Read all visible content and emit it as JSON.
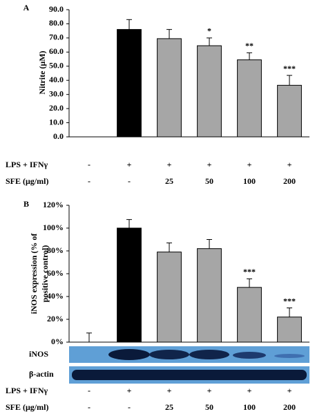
{
  "chart_data": [
    {
      "type": "bar",
      "panel": "A",
      "y_label": "Nitrite (μM)",
      "values": [
        0,
        76,
        69.5,
        64.5,
        54.5,
        36.5
      ],
      "errors": [
        null,
        7,
        6.5,
        5.5,
        5,
        7
      ],
      "annotations": [
        null,
        null,
        null,
        "*",
        "**",
        "***"
      ],
      "colors": [
        "#000000",
        "#000000",
        "#a6a6a6",
        "#a6a6a6",
        "#a6a6a6",
        "#a6a6a6"
      ],
      "ylim": [
        0,
        90
      ],
      "yticks": [
        {
          "value": 0,
          "label": "0.0"
        },
        {
          "value": 10,
          "label": "10.0"
        },
        {
          "value": 20,
          "label": "20.0"
        },
        {
          "value": 30,
          "label": "30.0"
        },
        {
          "value": 40,
          "label": "40.0"
        },
        {
          "value": 50,
          "label": "50.0"
        },
        {
          "value": 60,
          "label": "60.0"
        },
        {
          "value": 70,
          "label": "70.0"
        },
        {
          "value": 80,
          "label": "80.0"
        },
        {
          "value": 90,
          "label": "90.0"
        }
      ],
      "treatments": [
        {
          "label": "LPS + IFNγ",
          "values": [
            "-",
            "+",
            "+",
            "+",
            "+",
            "+"
          ]
        },
        {
          "label": "SFE (μg/ml)",
          "values": [
            "-",
            "-",
            "25",
            "50",
            "100",
            "200"
          ]
        }
      ]
    },
    {
      "type": "bar",
      "panel": "B",
      "y_label": [
        "iNOS expression (% of",
        "positive control)"
      ],
      "values": [
        0,
        100,
        79,
        82,
        48,
        22
      ],
      "errors": [
        8,
        7.5,
        8,
        8,
        7.5,
        8
      ],
      "annotations": [
        null,
        null,
        null,
        null,
        "***",
        "***"
      ],
      "colors": [
        "#000000",
        "#000000",
        "#a6a6a6",
        "#a6a6a6",
        "#a6a6a6",
        "#a6a6a6"
      ],
      "ylim": [
        0,
        120
      ],
      "yticks": [
        {
          "value": 0,
          "label": "0%"
        },
        {
          "value": 20,
          "label": "20%"
        },
        {
          "value": 40,
          "label": "40%"
        },
        {
          "value": 60,
          "label": "60%"
        },
        {
          "value": 80,
          "label": "80%"
        },
        {
          "value": 100,
          "label": "100%"
        },
        {
          "value": 120,
          "label": "120%"
        }
      ],
      "blots": [
        "iNOS",
        "β-actin"
      ],
      "treatments": [
        {
          "label": "LPS + IFNγ",
          "values": [
            "-",
            "+",
            "+",
            "+",
            "+",
            "+"
          ]
        },
        {
          "label": "SFE (μg/ml)",
          "values": [
            "-",
            "-",
            "25",
            "50",
            "100",
            "200"
          ]
        }
      ]
    }
  ]
}
